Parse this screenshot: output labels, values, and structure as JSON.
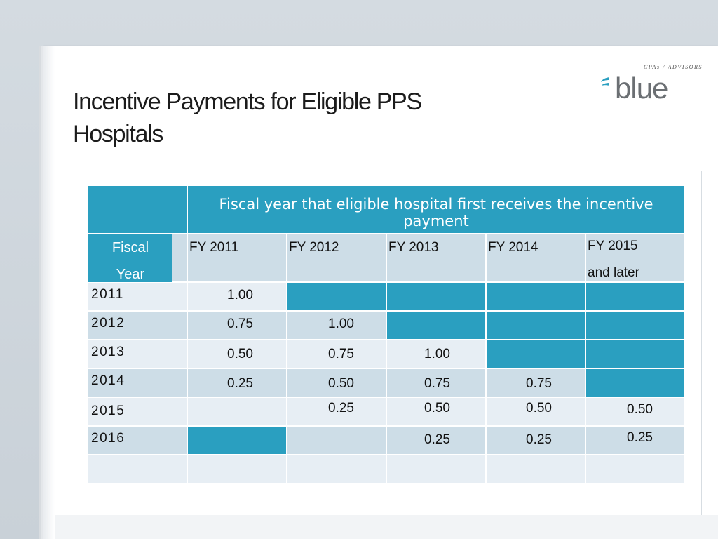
{
  "slide": {
    "title_line1": "Incentive Payments for Eligible  PPS",
    "title_line2": "Hospitals"
  },
  "logo": {
    "tagline": "CPAs / ADVISORS",
    "wordmark": "blue",
    "mark_icon": "blue-swoosh-icon"
  },
  "table": {
    "group_header": "Fiscal year that eligible hospital first receives the incentive payment",
    "row_header_line1": "Fiscal",
    "row_header_line2": "Year",
    "columns": [
      {
        "label": "FY 2011",
        "label2": ""
      },
      {
        "label": "FY 2012",
        "label2": ""
      },
      {
        "label": "FY 2013",
        "label2": ""
      },
      {
        "label": "FY 2014",
        "label2": ""
      },
      {
        "label": "FY 2015",
        "label2": "and later"
      }
    ],
    "rows": [
      {
        "year": "2011",
        "values": [
          "1.00",
          "",
          "",
          "",
          ""
        ]
      },
      {
        "year": "2012",
        "values": [
          "0.75",
          "1.00",
          "",
          "",
          ""
        ]
      },
      {
        "year": "2013",
        "values": [
          "0.50",
          "0.75",
          "1.00",
          "",
          ""
        ]
      },
      {
        "year": "2014",
        "values": [
          "0.25",
          "0.50",
          "0.75",
          "0.75",
          ""
        ]
      },
      {
        "year": "2015",
        "values": [
          "",
          "0.25",
          "0.50",
          "0.50",
          "0.50"
        ]
      },
      {
        "year": "2016",
        "values": [
          "",
          "",
          "0.25",
          "0.25",
          "0.25"
        ]
      },
      {
        "year": "",
        "values": [
          "",
          "",
          "",
          "",
          ""
        ]
      }
    ]
  },
  "colors": {
    "accent": "#2a9fc0",
    "light_cell": "#cddde7",
    "pale_cell": "#e7eef4"
  }
}
